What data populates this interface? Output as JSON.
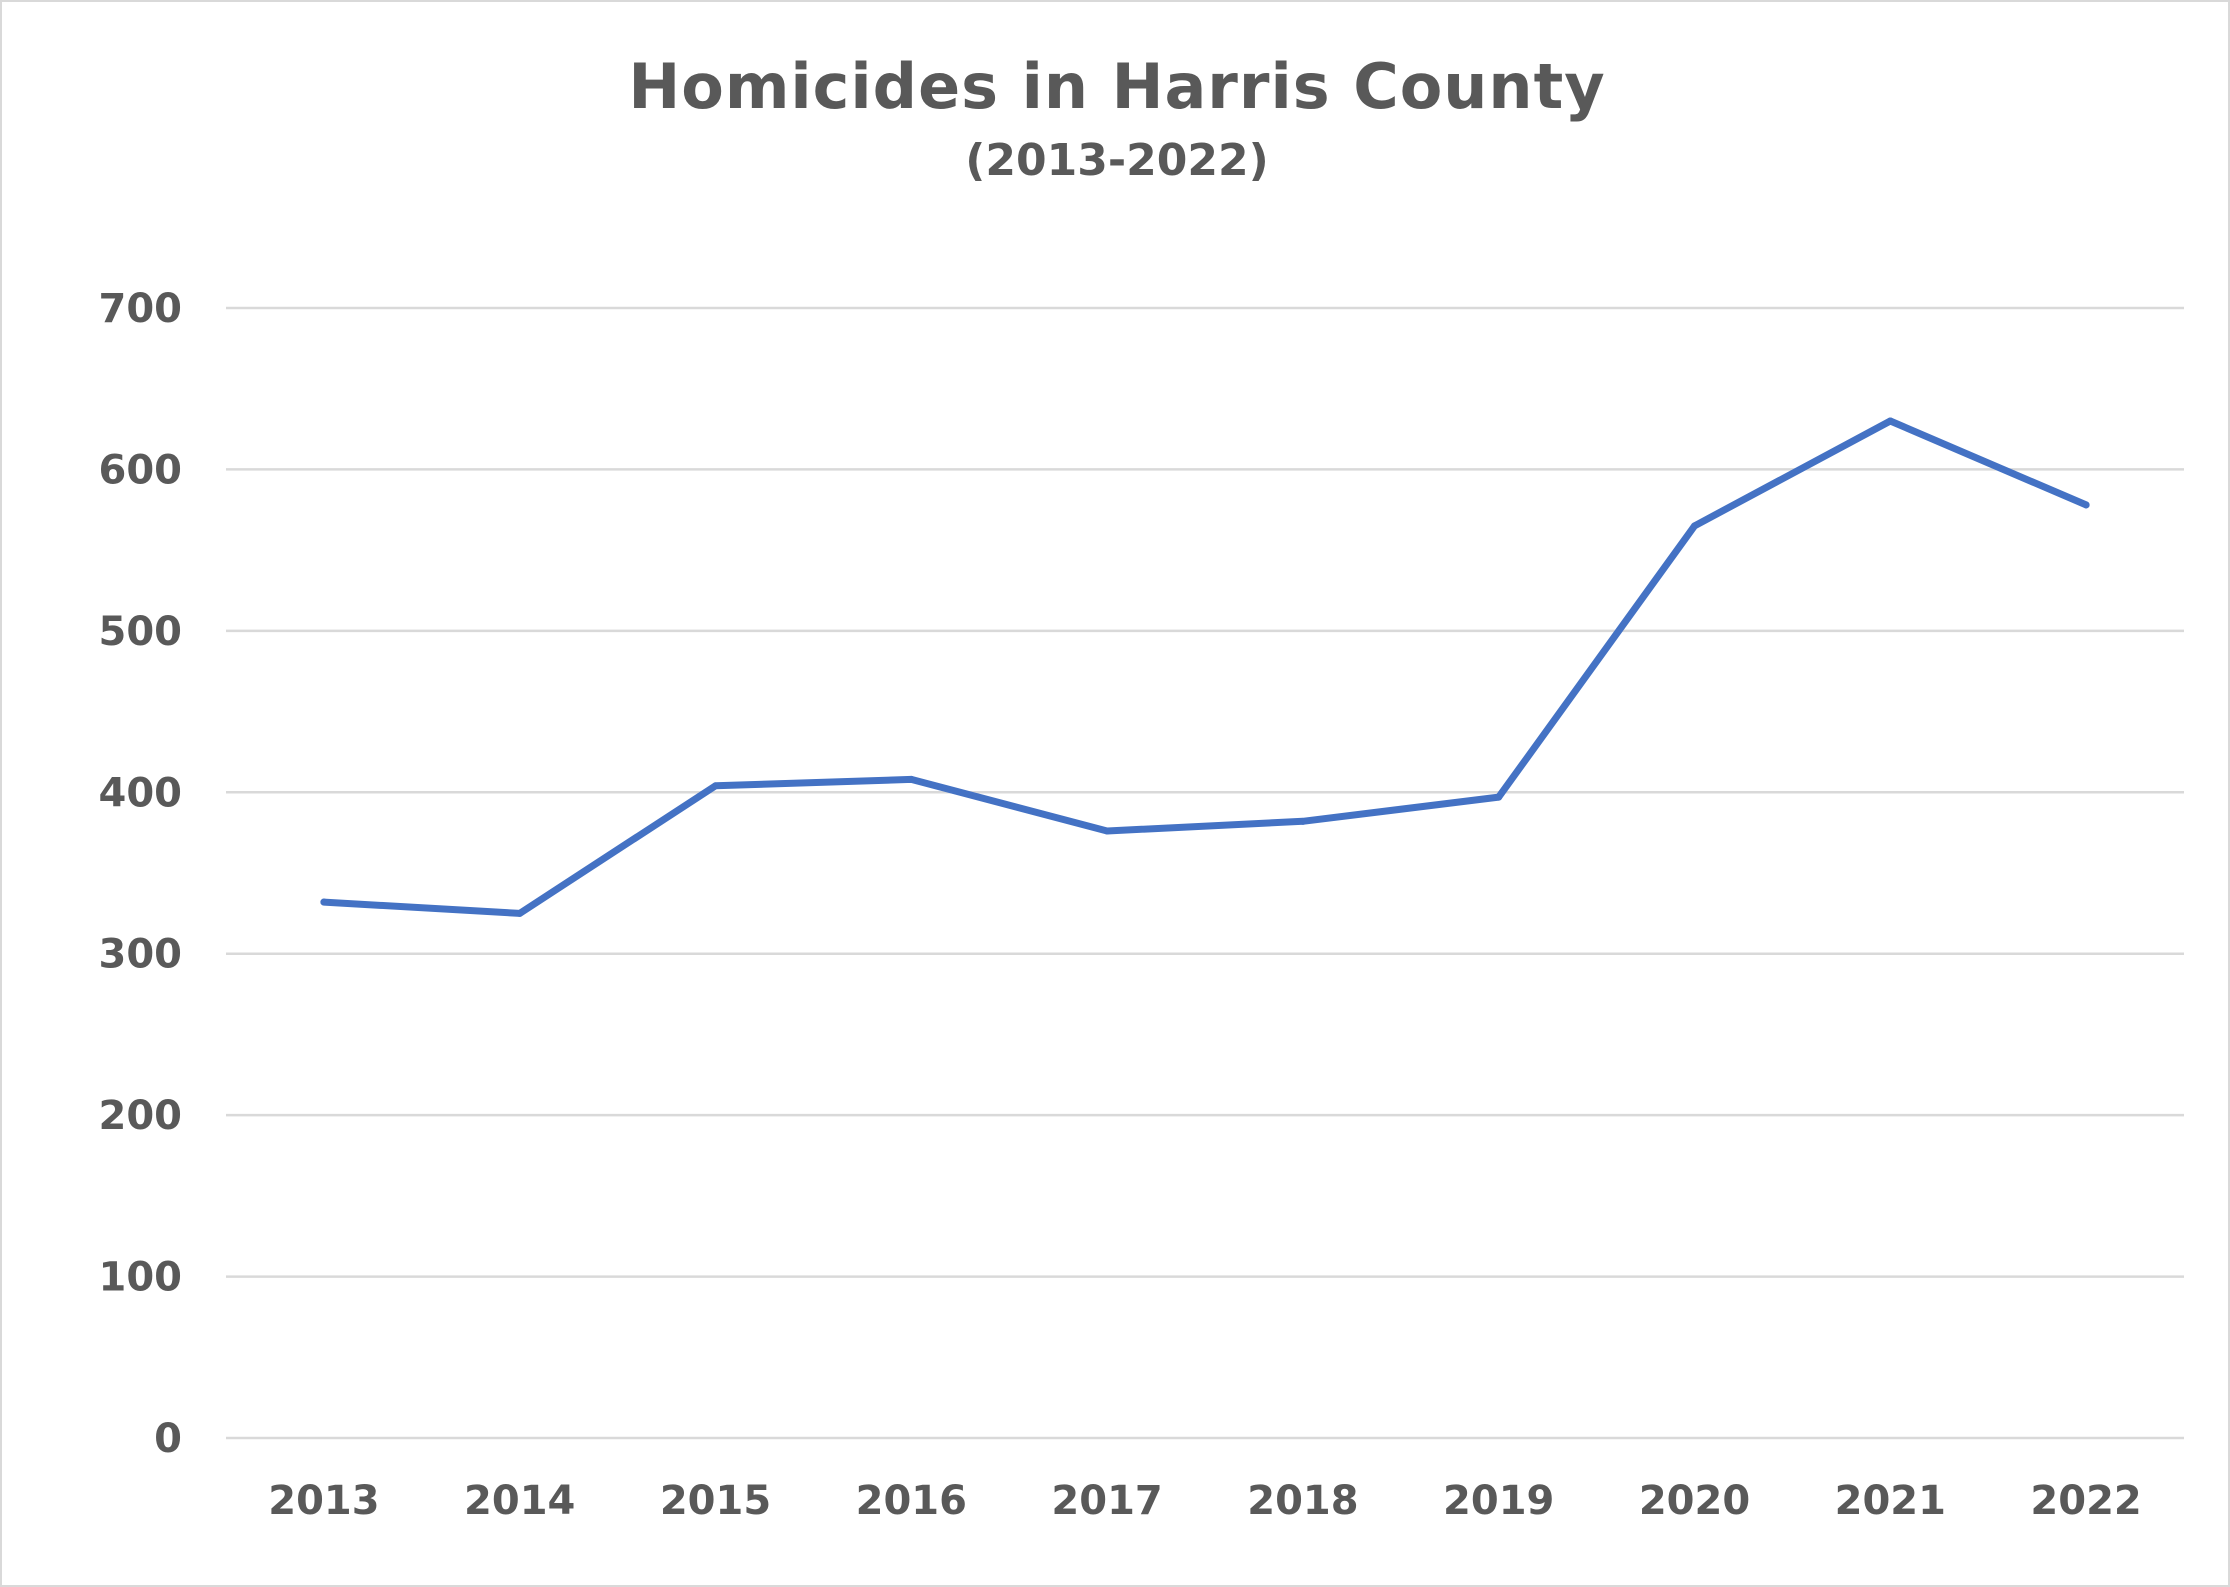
{
  "chart_data": {
    "type": "line",
    "title": "Homicides in Harris County",
    "subtitle": "(2013-2022)",
    "xlabel": "",
    "ylabel": "",
    "categories": [
      "2013",
      "2014",
      "2015",
      "2016",
      "2017",
      "2018",
      "2019",
      "2020",
      "2021",
      "2022"
    ],
    "series": [
      {
        "values": [
          332,
          325,
          404,
          408,
          376,
          382,
          397,
          565,
          630,
          578
        ],
        "color": "#4472c4"
      }
    ],
    "ylim": [
      0,
      700
    ],
    "yticks": [
      0,
      100,
      200,
      300,
      400,
      500,
      600,
      700
    ],
    "grid": true,
    "legend": "none"
  }
}
